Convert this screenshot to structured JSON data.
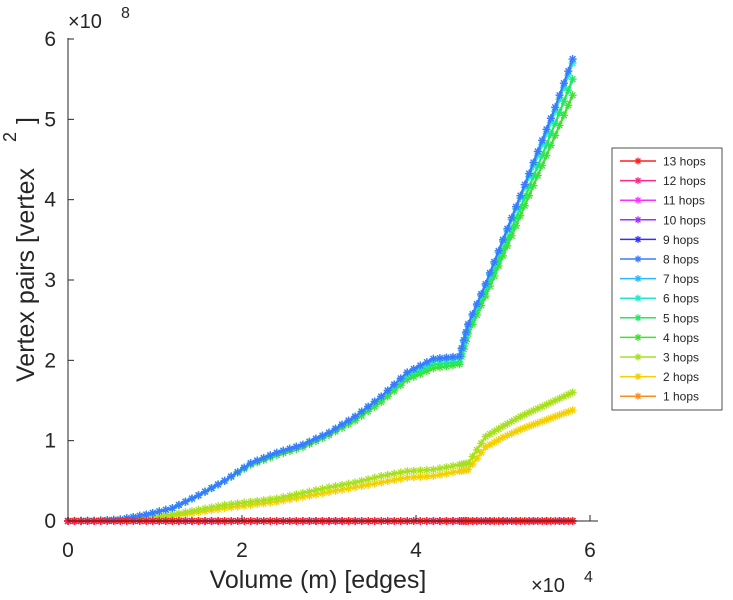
{
  "chart_data": {
    "type": "line",
    "xlabel": "Volume (m) [edges]",
    "ylabel": "Vertex pairs [vertex",
    "ylabel_superscript": "2",
    "ylabel_tail": "]",
    "x_multiplier": {
      "base": "×10",
      "exponent": "4"
    },
    "y_multiplier": {
      "base": "×10",
      "exponent": "8"
    },
    "xlim": [
      0,
      6
    ],
    "ylim": [
      0,
      6
    ],
    "x_ticks": [
      "0",
      "2",
      "4",
      "6"
    ],
    "y_ticks": [
      "0",
      "1",
      "2",
      "3",
      "4",
      "5",
      "6"
    ],
    "grid": false,
    "legend_position": "right",
    "x": [
      0,
      0.3,
      0.6,
      0.9,
      1.2,
      1.5,
      1.8,
      2.1,
      2.4,
      2.7,
      3.0,
      3.3,
      3.6,
      3.9,
      4.2,
      4.5,
      4.6,
      4.8,
      5.0,
      5.2,
      5.4,
      5.6,
      5.8
    ],
    "series": [
      {
        "name": "13 hops",
        "color": "#ff2020",
        "values": [
          0,
          0,
          0,
          0,
          0,
          0,
          0,
          0,
          0,
          0,
          0,
          0,
          0,
          0,
          0,
          0,
          0,
          0,
          0,
          0,
          0,
          0,
          0
        ]
      },
      {
        "name": "12 hops",
        "color": "#ff2a8a",
        "values": [
          0,
          0,
          0,
          0,
          0,
          0,
          0,
          0,
          0,
          0,
          0,
          0,
          0,
          0,
          0,
          0,
          0,
          0,
          0,
          0,
          0,
          0,
          0
        ]
      },
      {
        "name": "11 hops",
        "color": "#ff30ff",
        "values": [
          0,
          0,
          0,
          0,
          0,
          0,
          0,
          0,
          0,
          0,
          0,
          0,
          0,
          0,
          0,
          0,
          0,
          0,
          0,
          0,
          0,
          0,
          0
        ]
      },
      {
        "name": "10 hops",
        "color": "#a030ff",
        "values": [
          0,
          0,
          0,
          0,
          0,
          0,
          0,
          0,
          0,
          0,
          0,
          0,
          0,
          0,
          0,
          0,
          0,
          0,
          0,
          0,
          0,
          0,
          0
        ]
      },
      {
        "name": "9 hops",
        "color": "#3030ff",
        "values": [
          0,
          0,
          0,
          0,
          0,
          0,
          0,
          0,
          0,
          0,
          0,
          0,
          0,
          0,
          0,
          0,
          0,
          0,
          0,
          0,
          0,
          0,
          0
        ]
      },
      {
        "name": "8 hops",
        "color": "#3a7bff",
        "values": [
          0,
          0.003,
          0.02,
          0.08,
          0.16,
          0.32,
          0.5,
          0.72,
          0.85,
          0.95,
          1.1,
          1.3,
          1.55,
          1.85,
          2.02,
          2.05,
          2.45,
          2.95,
          3.5,
          4.05,
          4.6,
          5.15,
          5.75
        ]
      },
      {
        "name": "7 hops",
        "color": "#2ab8ff",
        "values": [
          0,
          0.003,
          0.02,
          0.08,
          0.16,
          0.32,
          0.5,
          0.72,
          0.85,
          0.95,
          1.1,
          1.3,
          1.55,
          1.85,
          2.02,
          2.05,
          2.45,
          2.95,
          3.5,
          4.05,
          4.6,
          5.15,
          5.75
        ]
      },
      {
        "name": "6 hops",
        "color": "#20e8d0",
        "values": [
          0,
          0.003,
          0.02,
          0.08,
          0.16,
          0.32,
          0.5,
          0.72,
          0.85,
          0.95,
          1.1,
          1.3,
          1.55,
          1.83,
          1.99,
          2.03,
          2.43,
          2.93,
          3.48,
          4.02,
          4.55,
          5.1,
          5.7
        ]
      },
      {
        "name": "5 hops",
        "color": "#20e860",
        "values": [
          0,
          0.003,
          0.02,
          0.08,
          0.16,
          0.32,
          0.5,
          0.71,
          0.84,
          0.94,
          1.09,
          1.28,
          1.52,
          1.8,
          1.95,
          1.98,
          2.38,
          2.86,
          3.38,
          3.9,
          4.42,
          4.95,
          5.5
        ]
      },
      {
        "name": "4 hops",
        "color": "#40e030",
        "values": [
          0,
          0.003,
          0.02,
          0.08,
          0.16,
          0.32,
          0.5,
          0.7,
          0.82,
          0.92,
          1.07,
          1.25,
          1.48,
          1.76,
          1.9,
          1.95,
          2.33,
          2.8,
          3.3,
          3.8,
          4.3,
          4.8,
          5.3
        ]
      },
      {
        "name": "3 hops",
        "color": "#a8e020",
        "values": [
          0,
          0.002,
          0.01,
          0.04,
          0.08,
          0.14,
          0.2,
          0.24,
          0.28,
          0.35,
          0.42,
          0.48,
          0.56,
          0.62,
          0.64,
          0.7,
          0.72,
          1.05,
          1.18,
          1.3,
          1.4,
          1.5,
          1.6
        ]
      },
      {
        "name": "2 hops",
        "color": "#f5d000",
        "values": [
          0,
          0.001,
          0.008,
          0.03,
          0.06,
          0.11,
          0.16,
          0.2,
          0.24,
          0.3,
          0.36,
          0.42,
          0.48,
          0.54,
          0.56,
          0.62,
          0.64,
          0.92,
          1.04,
          1.14,
          1.22,
          1.3,
          1.38
        ]
      },
      {
        "name": "1 hops",
        "color": "#ff8c1a",
        "values": [
          0,
          0,
          0,
          0,
          0,
          0,
          0,
          0,
          0,
          0,
          0,
          0,
          0,
          0,
          0,
          0,
          0,
          0,
          0,
          0,
          0,
          0,
          0
        ]
      }
    ]
  }
}
